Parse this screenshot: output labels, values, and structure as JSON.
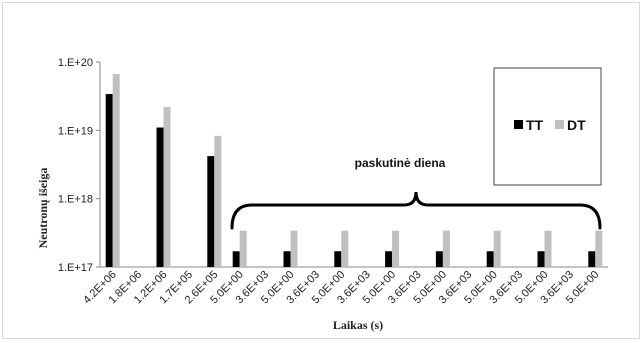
{
  "chart_data": {
    "type": "bar",
    "xlabel": "Laikas (s)",
    "ylabel": "Neutronų išeiga",
    "yscale": "log",
    "ylim": [
      1e+17,
      1e+20
    ],
    "yticks": [
      "1.E+17",
      "1.E+18",
      "1.E+19",
      "1.E+20"
    ],
    "categories": [
      "4.2E+06",
      "1.8E+06",
      "1.2E+06",
      "1.7E+05",
      "2.6E+05",
      "5.0E+00",
      "3.6E+03",
      "5.0E+00",
      "3.6E+03",
      "5.0E+00",
      "3.6E+03",
      "5.0E+00",
      "3.6E+03",
      "5.0E+00",
      "3.6E+03",
      "5.0E+00",
      "3.6E+03",
      "5.0E+00",
      "3.6E+03",
      "5.0E+00"
    ],
    "series": [
      {
        "name": "TT",
        "color": "#000000",
        "values": [
          3.4e+19,
          null,
          1.1e+19,
          null,
          4.2e+18,
          1.7e+17,
          null,
          1.7e+17,
          null,
          1.7e+17,
          null,
          1.7e+17,
          null,
          1.7e+17,
          null,
          1.7e+17,
          null,
          1.7e+17,
          null,
          1.7e+17
        ]
      },
      {
        "name": "DT",
        "color": "#c0c0c0",
        "values": [
          6.7e+19,
          null,
          2.2e+19,
          null,
          8.3e+18,
          3.4e+17,
          null,
          3.4e+17,
          null,
          3.4e+17,
          null,
          3.4e+17,
          null,
          3.4e+17,
          null,
          3.4e+17,
          null,
          3.4e+17,
          null,
          3.4e+17
        ]
      }
    ],
    "annotation": "paskutinė diena",
    "grid": false,
    "legend_position": "right"
  }
}
